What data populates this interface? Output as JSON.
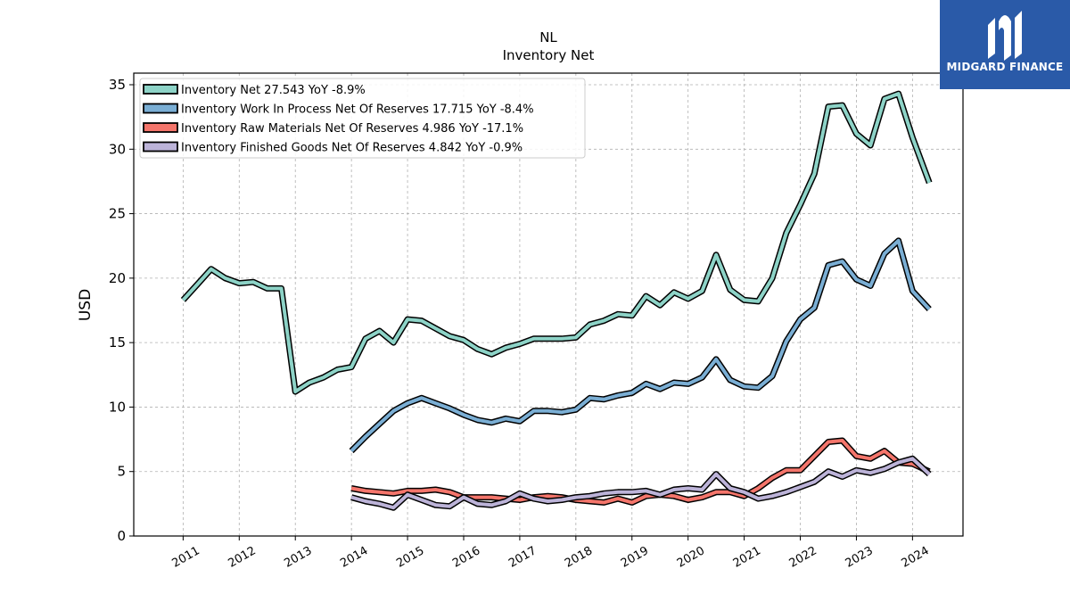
{
  "brand": {
    "name": "MIDGARD FINANCE",
    "color": "#2a5aa8"
  },
  "chart_data": {
    "type": "line",
    "title": "NL",
    "subtitle": "Inventory Net",
    "ylabel": "USD",
    "xlabel": "",
    "ylim": [
      0,
      35.9
    ],
    "yticks": [
      0,
      5,
      10,
      15,
      20,
      25,
      30,
      35
    ],
    "xlim": [
      2010.12,
      2024.9
    ],
    "xticks": [
      2011,
      2012,
      2013,
      2014,
      2015,
      2016,
      2017,
      2018,
      2019,
      2020,
      2021,
      2022,
      2023,
      2024
    ],
    "grid": true,
    "legend_position": "top-left",
    "series": [
      {
        "name": "Inventory Net  27.543 YoY -8.9%",
        "color": "#8dd3c7",
        "points": [
          [
            2011.0,
            18.3
          ],
          [
            2011.25,
            19.5
          ],
          [
            2011.5,
            20.7
          ],
          [
            2011.75,
            20.0
          ],
          [
            2012.0,
            19.6
          ],
          [
            2012.25,
            19.7
          ],
          [
            2012.5,
            19.2
          ],
          [
            2012.75,
            19.2
          ],
          [
            2013.0,
            11.2
          ],
          [
            2013.25,
            11.9
          ],
          [
            2013.5,
            12.3
          ],
          [
            2013.75,
            12.9
          ],
          [
            2014.0,
            13.1
          ],
          [
            2014.25,
            15.3
          ],
          [
            2014.5,
            15.9
          ],
          [
            2014.75,
            15.0
          ],
          [
            2015.0,
            16.8
          ],
          [
            2015.25,
            16.7
          ],
          [
            2015.5,
            16.1
          ],
          [
            2015.75,
            15.5
          ],
          [
            2016.0,
            15.2
          ],
          [
            2016.25,
            14.5
          ],
          [
            2016.5,
            14.1
          ],
          [
            2016.75,
            14.6
          ],
          [
            2017.0,
            14.9
          ],
          [
            2017.25,
            15.3
          ],
          [
            2017.5,
            15.3
          ],
          [
            2017.75,
            15.3
          ],
          [
            2018.0,
            15.4
          ],
          [
            2018.25,
            16.4
          ],
          [
            2018.5,
            16.7
          ],
          [
            2018.75,
            17.2
          ],
          [
            2019.0,
            17.1
          ],
          [
            2019.25,
            18.6
          ],
          [
            2019.5,
            17.9
          ],
          [
            2019.75,
            18.9
          ],
          [
            2020.0,
            18.4
          ],
          [
            2020.25,
            19.0
          ],
          [
            2020.5,
            21.8
          ],
          [
            2020.75,
            19.1
          ],
          [
            2021.0,
            18.3
          ],
          [
            2021.25,
            18.2
          ],
          [
            2021.5,
            20.0
          ],
          [
            2021.75,
            23.5
          ],
          [
            2022.0,
            25.7
          ],
          [
            2022.25,
            28.1
          ],
          [
            2022.5,
            33.3
          ],
          [
            2022.75,
            33.4
          ],
          [
            2023.0,
            31.2
          ],
          [
            2023.25,
            30.3
          ],
          [
            2023.5,
            33.9
          ],
          [
            2023.75,
            34.3
          ],
          [
            2024.0,
            30.9
          ],
          [
            2024.3,
            27.4
          ]
        ]
      },
      {
        "name": "Inventory Work In Process Net Of Reserves  17.715 YoY -8.4%",
        "color": "#7aaed4",
        "points": [
          [
            2014.0,
            6.6
          ],
          [
            2014.25,
            7.7
          ],
          [
            2014.5,
            8.7
          ],
          [
            2014.75,
            9.7
          ],
          [
            2015.0,
            10.3
          ],
          [
            2015.25,
            10.7
          ],
          [
            2015.5,
            10.3
          ],
          [
            2015.75,
            9.9
          ],
          [
            2016.0,
            9.4
          ],
          [
            2016.25,
            9.0
          ],
          [
            2016.5,
            8.8
          ],
          [
            2016.75,
            9.1
          ],
          [
            2017.0,
            8.9
          ],
          [
            2017.25,
            9.7
          ],
          [
            2017.5,
            9.7
          ],
          [
            2017.75,
            9.6
          ],
          [
            2018.0,
            9.8
          ],
          [
            2018.25,
            10.7
          ],
          [
            2018.5,
            10.6
          ],
          [
            2018.75,
            10.9
          ],
          [
            2019.0,
            11.1
          ],
          [
            2019.25,
            11.8
          ],
          [
            2019.5,
            11.4
          ],
          [
            2019.75,
            11.9
          ],
          [
            2020.0,
            11.8
          ],
          [
            2020.25,
            12.3
          ],
          [
            2020.5,
            13.7
          ],
          [
            2020.75,
            12.1
          ],
          [
            2021.0,
            11.6
          ],
          [
            2021.25,
            11.5
          ],
          [
            2021.5,
            12.4
          ],
          [
            2021.75,
            15.1
          ],
          [
            2022.0,
            16.8
          ],
          [
            2022.25,
            17.7
          ],
          [
            2022.5,
            21.0
          ],
          [
            2022.75,
            21.3
          ],
          [
            2023.0,
            19.9
          ],
          [
            2023.25,
            19.4
          ],
          [
            2023.5,
            21.9
          ],
          [
            2023.75,
            22.9
          ],
          [
            2024.0,
            19.0
          ],
          [
            2024.3,
            17.6
          ]
        ]
      },
      {
        "name": "Inventory Raw Materials Net Of Reserves  4.986 YoY -17.1%",
        "color": "#f4756b",
        "points": [
          [
            2014.0,
            3.7
          ],
          [
            2014.25,
            3.5
          ],
          [
            2014.5,
            3.4
          ],
          [
            2014.75,
            3.3
          ],
          [
            2015.0,
            3.5
          ],
          [
            2015.25,
            3.5
          ],
          [
            2015.5,
            3.6
          ],
          [
            2015.75,
            3.4
          ],
          [
            2016.0,
            3.0
          ],
          [
            2016.25,
            3.0
          ],
          [
            2016.5,
            3.0
          ],
          [
            2016.75,
            2.9
          ],
          [
            2017.0,
            2.8
          ],
          [
            2017.25,
            3.0
          ],
          [
            2017.5,
            3.1
          ],
          [
            2017.75,
            3.0
          ],
          [
            2018.0,
            2.8
          ],
          [
            2018.25,
            2.7
          ],
          [
            2018.5,
            2.6
          ],
          [
            2018.75,
            2.9
          ],
          [
            2019.0,
            2.6
          ],
          [
            2019.25,
            3.1
          ],
          [
            2019.5,
            3.2
          ],
          [
            2019.75,
            3.1
          ],
          [
            2020.0,
            2.8
          ],
          [
            2020.25,
            3.0
          ],
          [
            2020.5,
            3.4
          ],
          [
            2020.75,
            3.4
          ],
          [
            2021.0,
            3.1
          ],
          [
            2021.25,
            3.7
          ],
          [
            2021.5,
            4.5
          ],
          [
            2021.75,
            5.1
          ],
          [
            2022.0,
            5.1
          ],
          [
            2022.25,
            6.2
          ],
          [
            2022.5,
            7.3
          ],
          [
            2022.75,
            7.4
          ],
          [
            2023.0,
            6.2
          ],
          [
            2023.25,
            6.0
          ],
          [
            2023.5,
            6.6
          ],
          [
            2023.75,
            5.7
          ],
          [
            2024.0,
            5.6
          ],
          [
            2024.3,
            5.0
          ]
        ]
      },
      {
        "name": "Inventory Finished Goods Net Of Reserves  4.842 YoY -0.9%",
        "color": "#bcb3d8",
        "points": [
          [
            2014.0,
            3.0
          ],
          [
            2014.25,
            2.7
          ],
          [
            2014.5,
            2.5
          ],
          [
            2014.75,
            2.2
          ],
          [
            2015.0,
            3.2
          ],
          [
            2015.25,
            2.8
          ],
          [
            2015.5,
            2.4
          ],
          [
            2015.75,
            2.3
          ],
          [
            2016.0,
            3.0
          ],
          [
            2016.25,
            2.5
          ],
          [
            2016.5,
            2.4
          ],
          [
            2016.75,
            2.7
          ],
          [
            2017.0,
            3.3
          ],
          [
            2017.25,
            2.9
          ],
          [
            2017.5,
            2.7
          ],
          [
            2017.75,
            2.8
          ],
          [
            2018.0,
            3.0
          ],
          [
            2018.25,
            3.1
          ],
          [
            2018.5,
            3.3
          ],
          [
            2018.75,
            3.4
          ],
          [
            2019.0,
            3.4
          ],
          [
            2019.25,
            3.5
          ],
          [
            2019.5,
            3.2
          ],
          [
            2019.75,
            3.6
          ],
          [
            2020.0,
            3.7
          ],
          [
            2020.25,
            3.6
          ],
          [
            2020.5,
            4.8
          ],
          [
            2020.75,
            3.7
          ],
          [
            2021.0,
            3.4
          ],
          [
            2021.25,
            2.9
          ],
          [
            2021.5,
            3.1
          ],
          [
            2021.75,
            3.4
          ],
          [
            2022.0,
            3.8
          ],
          [
            2022.25,
            4.2
          ],
          [
            2022.5,
            5.0
          ],
          [
            2022.75,
            4.6
          ],
          [
            2023.0,
            5.1
          ],
          [
            2023.25,
            4.9
          ],
          [
            2023.5,
            5.2
          ],
          [
            2023.75,
            5.7
          ],
          [
            2024.0,
            6.0
          ],
          [
            2024.3,
            4.8
          ]
        ]
      }
    ]
  }
}
